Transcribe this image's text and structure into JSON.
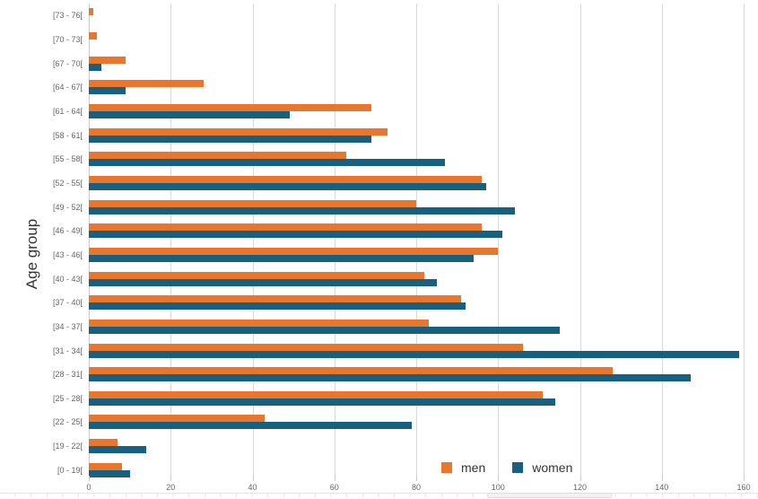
{
  "chart_data": {
    "type": "bar",
    "orientation": "horizontal",
    "title": "",
    "xlabel": "",
    "ylabel": "Age group",
    "xlim": [
      0,
      160
    ],
    "xticks": [
      0,
      20,
      40,
      60,
      80,
      100,
      120,
      140,
      160
    ],
    "grid": "vertical-gridlines-only",
    "legend_position": "bottom-center",
    "categories": [
      "[73 - 76[",
      "[70 - 73[",
      "[67 - 70[",
      "[64 - 67[",
      "[61 - 64[",
      "[58 - 61[",
      "[55 - 58[",
      "[52 - 55[",
      "[49 - 52[",
      "[46 - 49[",
      "[43 - 46[",
      "[40 - 43[",
      "[37 - 40[",
      "[34 - 37[",
      "[31 - 34[",
      "[28 - 31[",
      "[25 - 28[",
      "[22 - 25[",
      "[19 - 22[",
      "[0 - 19["
    ],
    "series": [
      {
        "name": "men",
        "color": "#e8762d",
        "values": [
          1,
          2,
          9,
          28,
          69,
          73,
          63,
          96,
          80,
          96,
          100,
          82,
          91,
          83,
          106,
          128,
          111,
          43,
          7,
          8
        ]
      },
      {
        "name": "women",
        "color": "#17607f",
        "values": [
          0,
          0,
          3,
          9,
          49,
          69,
          87,
          97,
          104,
          101,
          94,
          85,
          92,
          115,
          159,
          147,
          114,
          79,
          14,
          10
        ]
      }
    ]
  },
  "colors": {
    "gridline": "#d9d9d9",
    "zero_line": "#c9c9c9",
    "tick": "#cccccc",
    "axis_label_text": "#666666",
    "axis_title_text": "#333333",
    "legend_text": "#333333",
    "scrollbar_line": "#e3e3e3",
    "scrollbar_thumb": "#f2f2f2"
  }
}
